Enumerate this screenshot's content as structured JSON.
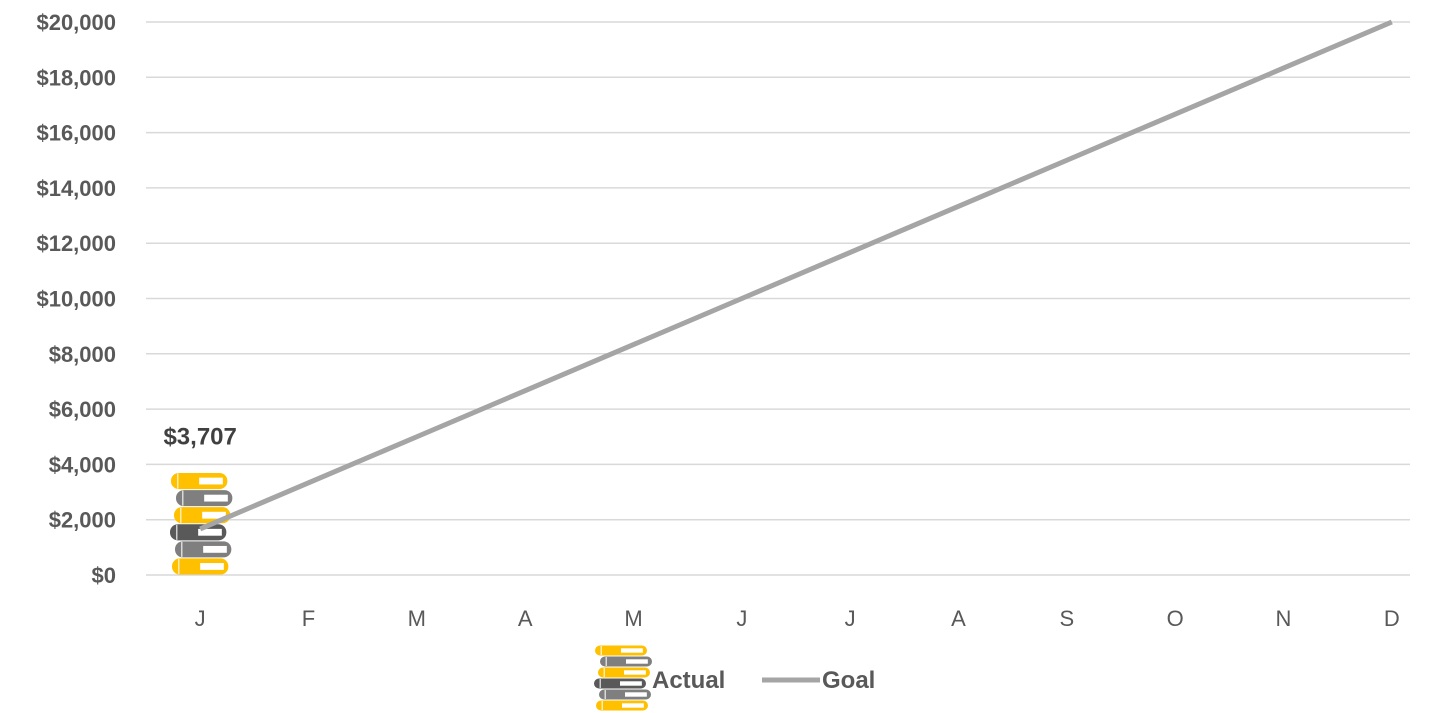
{
  "chart_data": {
    "type": "bar",
    "categories": [
      "J",
      "F",
      "M",
      "A",
      "M",
      "J",
      "J",
      "A",
      "S",
      "O",
      "N",
      "D"
    ],
    "series": [
      {
        "name": "Actual",
        "type": "bar",
        "values": [
          3707,
          null,
          null,
          null,
          null,
          null,
          null,
          null,
          null,
          null,
          null,
          null
        ],
        "data_labels": [
          "$3,707"
        ]
      },
      {
        "name": "Goal",
        "type": "line",
        "values": [
          1667,
          3333,
          5000,
          6667,
          8333,
          10000,
          11667,
          13333,
          15000,
          16667,
          18333,
          20000
        ]
      }
    ],
    "y_ticks": [
      "$0",
      "$2,000",
      "$4,000",
      "$6,000",
      "$8,000",
      "$10,000",
      "$12,000",
      "$14,000",
      "$16,000",
      "$18,000",
      "$20,000"
    ],
    "ylim": [
      0,
      20000
    ],
    "grid": true,
    "legend_position": "bottom",
    "colors": {
      "goal_line": "#a5a5a5",
      "gridline": "#d9d9d9",
      "book_yellow": "#ffc000",
      "book_gray": "#7f7f7f",
      "book_dark": "#595959"
    }
  }
}
